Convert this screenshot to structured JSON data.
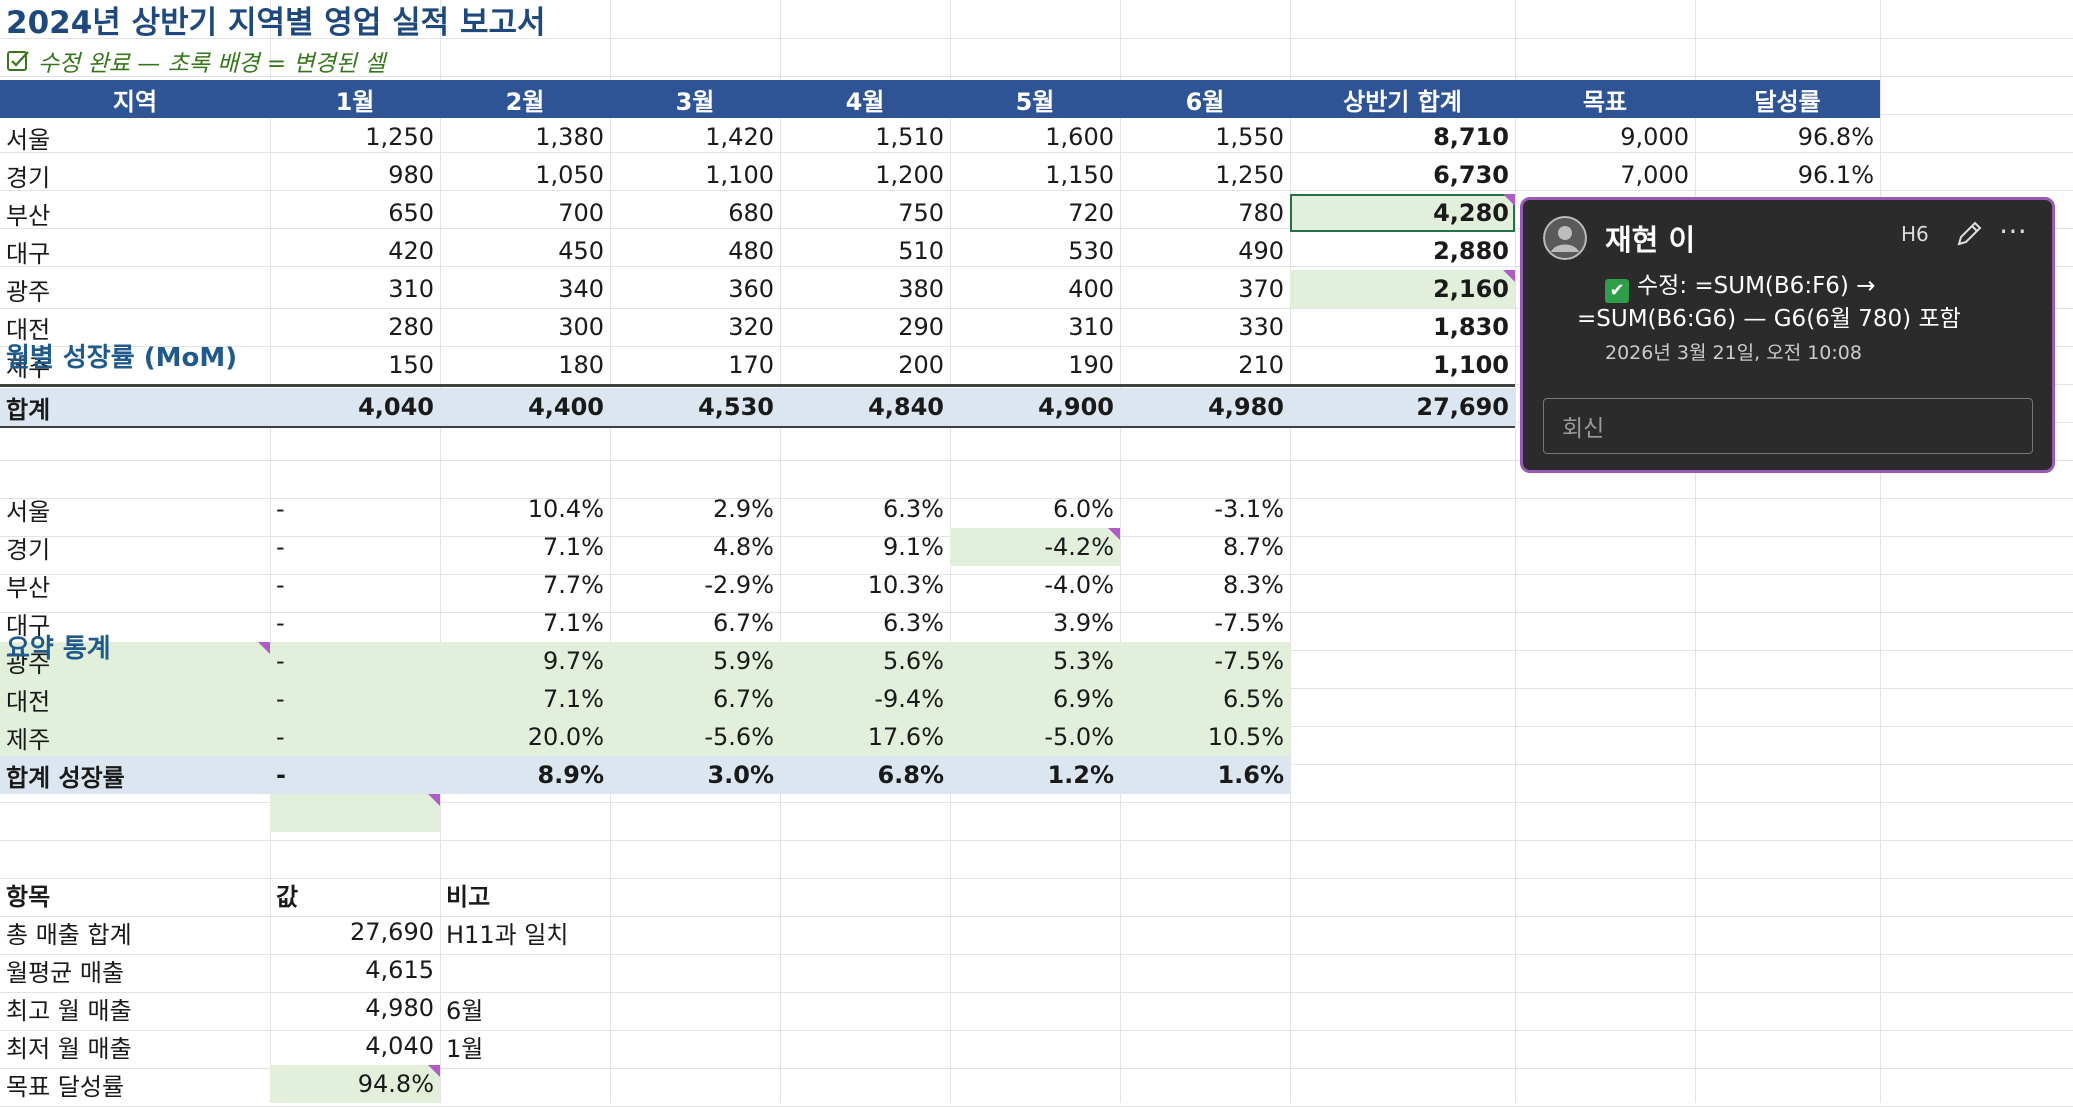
{
  "title": "2024년 상반기 지역별 영업 실적 보고서",
  "subtitle": "수정 완료 — 초록 배경 = 변경된 셀",
  "headers": [
    "지역",
    "1월",
    "2월",
    "3월",
    "4월",
    "5월",
    "6월",
    "상반기 합계",
    "목표",
    "달성률"
  ],
  "sales": [
    {
      "region": "서울",
      "m": [
        "1,250",
        "1,380",
        "1,420",
        "1,510",
        "1,600",
        "1,550"
      ],
      "total": "8,710",
      "target": "9,000",
      "rate": "96.8%"
    },
    {
      "region": "경기",
      "m": [
        "980",
        "1,050",
        "1,100",
        "1,200",
        "1,150",
        "1,250"
      ],
      "total": "6,730",
      "target": "7,000",
      "rate": "96.1%"
    },
    {
      "region": "부산",
      "m": [
        "650",
        "700",
        "680",
        "750",
        "720",
        "780"
      ],
      "total": "4,280",
      "target": "",
      "rate": ""
    },
    {
      "region": "대구",
      "m": [
        "420",
        "450",
        "480",
        "510",
        "530",
        "490"
      ],
      "total": "2,880",
      "target": "",
      "rate": ""
    },
    {
      "region": "광주",
      "m": [
        "310",
        "340",
        "360",
        "380",
        "400",
        "370"
      ],
      "total": "2,160",
      "target": "",
      "rate": ""
    },
    {
      "region": "대전",
      "m": [
        "280",
        "300",
        "320",
        "290",
        "310",
        "330"
      ],
      "total": "1,830",
      "target": "",
      "rate": ""
    },
    {
      "region": "제주",
      "m": [
        "150",
        "180",
        "170",
        "200",
        "190",
        "210"
      ],
      "total": "1,100",
      "target": "",
      "rate": ""
    }
  ],
  "sales_total": {
    "label": "합계",
    "m": [
      "4,040",
      "4,400",
      "4,530",
      "4,840",
      "4,900",
      "4,980"
    ],
    "total": "27,690"
  },
  "growth_title": "월별 성장률 (MoM)",
  "growth": [
    {
      "region": "서울",
      "v": [
        "-",
        "10.4%",
        "2.9%",
        "6.3%",
        "6.0%",
        "-3.1%"
      ]
    },
    {
      "region": "경기",
      "v": [
        "-",
        "7.1%",
        "4.8%",
        "9.1%",
        "-4.2%",
        "8.7%"
      ]
    },
    {
      "region": "부산",
      "v": [
        "-",
        "7.7%",
        "-2.9%",
        "10.3%",
        "-4.0%",
        "8.3%"
      ]
    },
    {
      "region": "대구",
      "v": [
        "-",
        "7.1%",
        "6.7%",
        "6.3%",
        "3.9%",
        "-7.5%"
      ]
    },
    {
      "region": "광주",
      "v": [
        "-",
        "9.7%",
        "5.9%",
        "5.6%",
        "5.3%",
        "-7.5%"
      ]
    },
    {
      "region": "대전",
      "v": [
        "-",
        "7.1%",
        "6.7%",
        "-9.4%",
        "6.9%",
        "6.5%"
      ]
    },
    {
      "region": "제주",
      "v": [
        "-",
        "20.0%",
        "-5.6%",
        "17.6%",
        "-5.0%",
        "10.5%"
      ]
    }
  ],
  "growth_total": {
    "label": "합계 성장률",
    "v": [
      "-",
      "8.9%",
      "3.0%",
      "6.8%",
      "1.2%",
      "1.6%"
    ]
  },
  "summary_title": "요약 통계",
  "summary_headers": [
    "항목",
    "값",
    "비고"
  ],
  "summary": [
    {
      "item": "총 매출 합계",
      "value": "27,690",
      "note": "H11과 일치"
    },
    {
      "item": "월평균 매출",
      "value": "4,615",
      "note": ""
    },
    {
      "item": "최고 월 매출",
      "value": "4,980",
      "note": "6월"
    },
    {
      "item": "최저 월 매출",
      "value": "4,040",
      "note": "1월"
    },
    {
      "item": "목표 달성률",
      "value": "94.8%",
      "note": ""
    }
  ],
  "comment": {
    "author": "재현 이",
    "cell_ref": "H6",
    "line1": "수정: =SUM(B6:F6) →",
    "line2": "=SUM(B6:G6) — G6(6월 780) 포함",
    "timestamp": "2026년 3월 21일, 오전 10:08",
    "reply_placeholder": "회신"
  },
  "colors": {
    "header_bg": "#2f5496",
    "changed_bg": "#e2efda",
    "total_bg": "#dce6f1",
    "comment_border": "#9b59b6",
    "comment_marker": "#b05cc7"
  },
  "icons": {
    "checkbox": "check-square-icon",
    "avatar": "user-avatar-icon",
    "edit": "pencil-icon",
    "more": "more-horizontal-icon"
  }
}
